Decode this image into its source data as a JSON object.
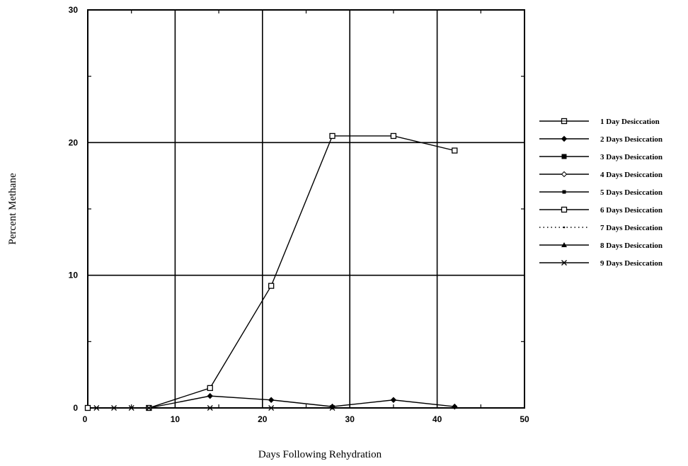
{
  "chart_data": {
    "type": "line",
    "xlabel": "Days Following Rehydration",
    "ylabel": "Percent Methane",
    "xlim": [
      0,
      50
    ],
    "ylim": [
      0,
      30
    ],
    "xticks": [
      0,
      10,
      20,
      30,
      40,
      50
    ],
    "yticks": [
      0,
      10,
      20,
      30
    ],
    "grid": true,
    "legend_position": "right",
    "series": [
      {
        "name": "1 Day Desiccation",
        "marker": "square-line",
        "x": [],
        "y": []
      },
      {
        "name": "2 Days Desiccation",
        "marker": "diamond",
        "x": [
          7,
          14,
          21,
          28,
          35,
          42
        ],
        "y": [
          0,
          0.9,
          0.6,
          0.1,
          0.6,
          0.1
        ]
      },
      {
        "name": "3 Days Desiccation",
        "marker": "square",
        "x": [],
        "y": []
      },
      {
        "name": "4 Days Desiccation",
        "marker": "diamond-open",
        "x": [],
        "y": []
      },
      {
        "name": "5 Days Desiccation",
        "marker": "square-small",
        "x": [],
        "y": []
      },
      {
        "name": "6 Days Desiccation",
        "marker": "square-open",
        "x": [
          0,
          7,
          14,
          21,
          28,
          35,
          42
        ],
        "y": [
          0,
          0,
          1.5,
          9.2,
          20.5,
          20.5,
          19.4
        ]
      },
      {
        "name": "7 Days Desiccation",
        "marker": "dot-dotted",
        "x": [],
        "y": []
      },
      {
        "name": "8 Days Desiccation",
        "marker": "triangle",
        "x": [
          42
        ],
        "y": [
          0.1
        ]
      },
      {
        "name": "9 Days Desiccation",
        "marker": "x",
        "x": [
          1,
          3,
          5,
          7,
          14,
          21,
          28
        ],
        "y": [
          0,
          0,
          0,
          0,
          0,
          0,
          0
        ]
      }
    ]
  }
}
